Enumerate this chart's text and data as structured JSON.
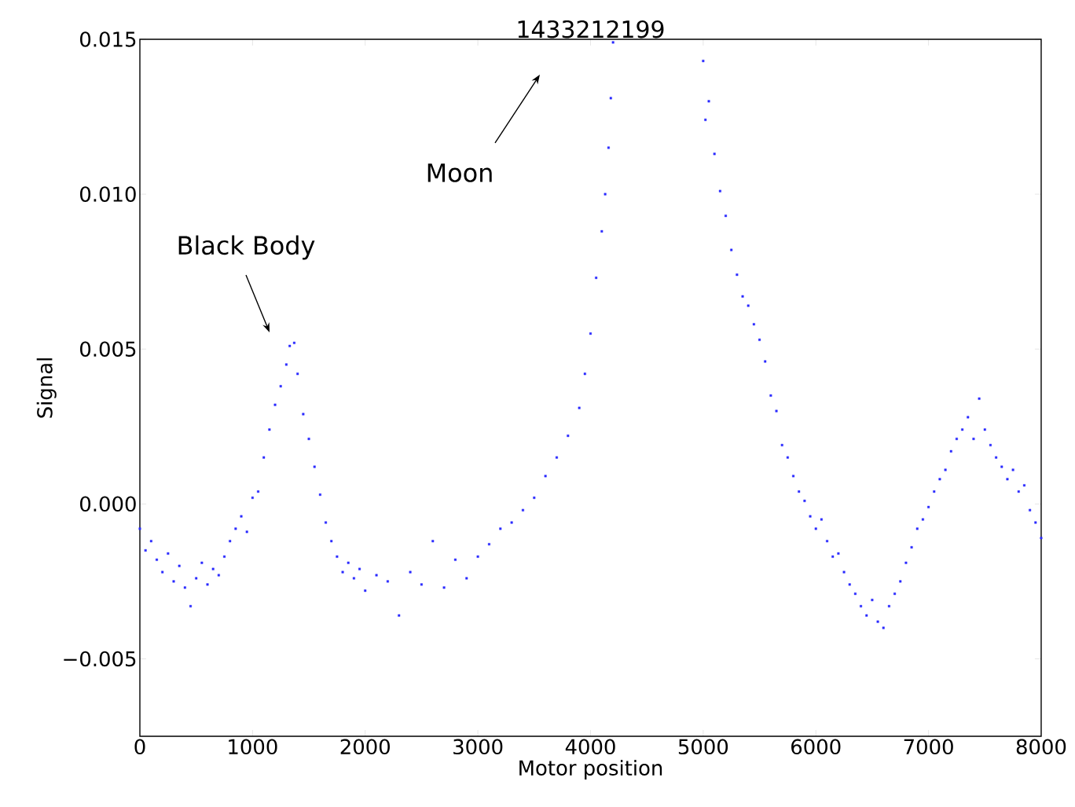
{
  "chart_data": {
    "type": "scatter",
    "title": "1433212199",
    "xlabel": "Motor position",
    "ylabel": "Signal",
    "xlim": [
      0,
      8000
    ],
    "ylim": [
      -0.0075,
      0.015
    ],
    "xticks": [
      0,
      1000,
      2000,
      3000,
      4000,
      5000,
      6000,
      7000,
      8000
    ],
    "yticks": [
      {
        "value": -0.005,
        "label": "−0.005"
      },
      {
        "value": 0,
        "label": "0.000"
      },
      {
        "value": 0.005,
        "label": "0.005"
      },
      {
        "value": 0.01,
        "label": "0.010"
      },
      {
        "value": 0.015,
        "label": "0.015"
      }
    ],
    "grid": false,
    "marker": "square",
    "annotations": [
      "Black Body",
      "Moon"
    ],
    "series": [
      {
        "color": "#2a2aff",
        "x": [
          0,
          50,
          100,
          150,
          200,
          250,
          300,
          350,
          400,
          450,
          500,
          550,
          600,
          650,
          700,
          750,
          800,
          850,
          900,
          950,
          1000,
          1050,
          1100,
          1150,
          1200,
          1250,
          1300,
          1330,
          1370,
          1400,
          1450,
          1500,
          1550,
          1600,
          1650,
          1700,
          1750,
          1800,
          1850,
          1900,
          1950,
          2000,
          2100,
          2200,
          2300,
          2400,
          2500,
          2600,
          2700,
          2800,
          2900,
          3000,
          3100,
          3200,
          3300,
          3400,
          3500,
          3600,
          3700,
          3800,
          3900,
          3950,
          4000,
          4050,
          4100,
          4130,
          4160,
          4180,
          4200,
          5000,
          5020,
          5050,
          5100,
          5150,
          5200,
          5250,
          5300,
          5350,
          5400,
          5450,
          5500,
          5550,
          5600,
          5650,
          5700,
          5750,
          5800,
          5850,
          5900,
          5950,
          6000,
          6050,
          6100,
          6150,
          6200,
          6250,
          6300,
          6350,
          6400,
          6450,
          6500,
          6550,
          6600,
          6650,
          6700,
          6750,
          6800,
          6850,
          6900,
          6950,
          7000,
          7050,
          7100,
          7150,
          7200,
          7250,
          7300,
          7350,
          7400,
          7450,
          7500,
          7550,
          7600,
          7650,
          7700,
          7750,
          7800,
          7850,
          7900,
          7950,
          8000
        ],
        "values": [
          -0.0008,
          -0.0015,
          -0.0012,
          -0.0018,
          -0.0022,
          -0.0016,
          -0.0025,
          -0.002,
          -0.0027,
          -0.0033,
          -0.0024,
          -0.0019,
          -0.0026,
          -0.0021,
          -0.0023,
          -0.0017,
          -0.0012,
          -0.0008,
          -0.0004,
          -0.0009,
          0.0002,
          0.0004,
          0.0015,
          0.0024,
          0.0032,
          0.0038,
          0.0045,
          0.0051,
          0.0052,
          0.0042,
          0.0029,
          0.0021,
          0.0012,
          0.0003,
          -0.0006,
          -0.0012,
          -0.0017,
          -0.0022,
          -0.0019,
          -0.0024,
          -0.0021,
          -0.0028,
          -0.0023,
          -0.0025,
          -0.0036,
          -0.0022,
          -0.0026,
          -0.0012,
          -0.0027,
          -0.0018,
          -0.0024,
          -0.0017,
          -0.0013,
          -0.0008,
          -0.0006,
          -0.0002,
          0.0002,
          0.0009,
          0.0015,
          0.0022,
          0.0031,
          0.0042,
          0.0055,
          0.0073,
          0.0088,
          0.01,
          0.0115,
          0.0131,
          0.0149,
          0.0143,
          0.0124,
          0.013,
          0.0113,
          0.0101,
          0.0093,
          0.0082,
          0.0074,
          0.0067,
          0.0064,
          0.0058,
          0.0053,
          0.0046,
          0.0035,
          0.003,
          0.0019,
          0.0015,
          0.0009,
          0.0004,
          0.0001,
          -0.0004,
          -0.0008,
          -0.0005,
          -0.0012,
          -0.0017,
          -0.0016,
          -0.0022,
          -0.0026,
          -0.0029,
          -0.0033,
          -0.0036,
          -0.0031,
          -0.0038,
          -0.004,
          -0.0033,
          -0.0029,
          -0.0025,
          -0.0019,
          -0.0014,
          -0.0008,
          -0.0005,
          -0.0001,
          0.0004,
          0.0008,
          0.0011,
          0.0017,
          0.0021,
          0.0024,
          0.0028,
          0.0021,
          0.0034,
          0.0024,
          0.0019,
          0.0015,
          0.0012,
          0.0008,
          0.0011,
          0.0004,
          0.0006,
          -0.0002,
          -0.0006,
          -0.0011
        ]
      }
    ]
  }
}
